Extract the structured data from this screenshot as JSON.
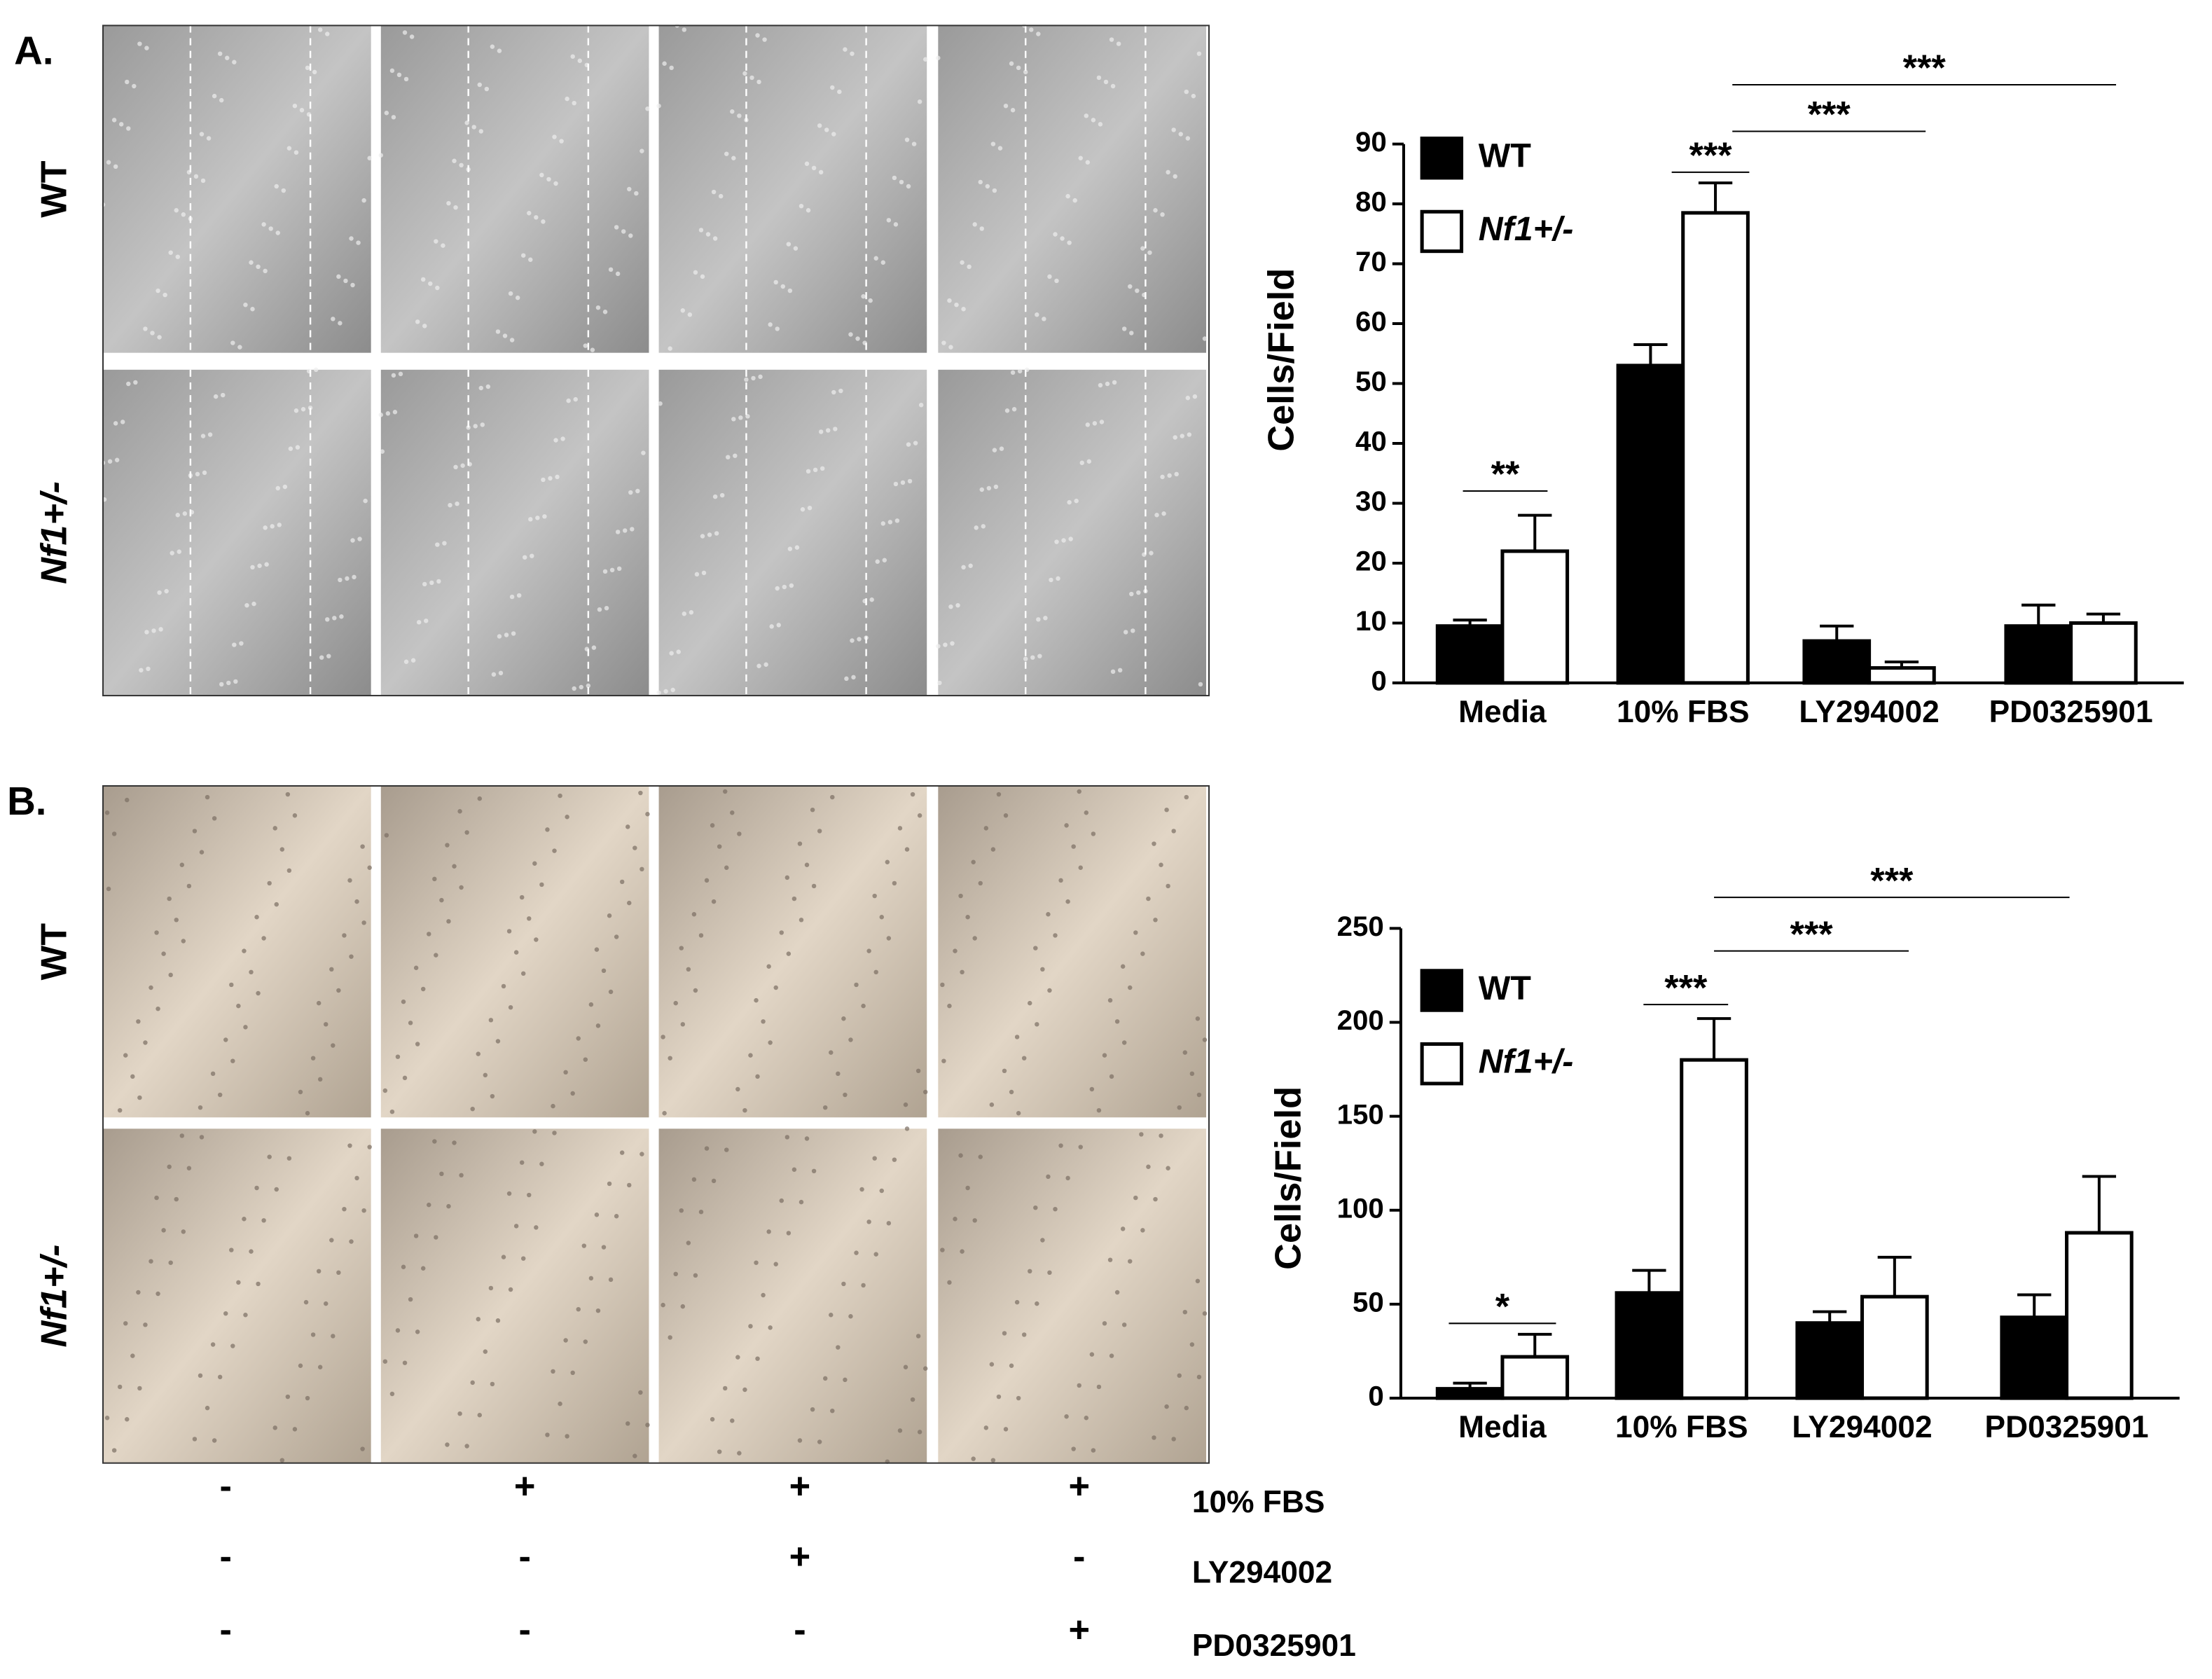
{
  "panels": [
    {
      "label": "A.",
      "row_labels": [
        "WT",
        "Nf1+/-"
      ]
    },
    {
      "label": "B.",
      "row_labels": [
        "WT",
        "Nf1+/-"
      ]
    }
  ],
  "chart_data": [
    {
      "type": "bar",
      "ylabel": "Cells/Field",
      "categories": [
        "Media",
        "10% FBS",
        "LY294002",
        "PD0325901"
      ],
      "ylim": [
        0,
        90
      ],
      "yticks": [
        0,
        10,
        20,
        30,
        40,
        50,
        60,
        70,
        80,
        90
      ],
      "series": [
        {
          "name": "WT",
          "color": "#000000",
          "values": [
            9.5,
            53,
            7,
            9.5
          ],
          "errors": [
            1,
            3.5,
            2.5,
            3.5
          ]
        },
        {
          "name": "Nf1+/-",
          "color": "#ffffff",
          "values": [
            22,
            78.5,
            2.5,
            10
          ],
          "errors": [
            6,
            5,
            1,
            1.5
          ]
        }
      ],
      "annotations": [
        "**",
        "***",
        "***",
        "***"
      ]
    },
    {
      "type": "bar",
      "ylabel": "Cells/Field",
      "categories": [
        "Media",
        "10% FBS",
        "LY294002",
        "PD0325901"
      ],
      "ylim": [
        0,
        250
      ],
      "yticks": [
        0,
        50,
        100,
        150,
        200,
        250
      ],
      "series": [
        {
          "name": "WT",
          "color": "#000000",
          "values": [
            5,
            56,
            40,
            43
          ],
          "errors": [
            3,
            12,
            6,
            12
          ]
        },
        {
          "name": "Nf1+/-",
          "color": "#ffffff",
          "values": [
            22,
            180,
            54,
            88
          ],
          "errors": [
            12,
            22,
            21,
            30
          ]
        }
      ],
      "annotations": [
        "*",
        "***",
        "***",
        "***"
      ]
    }
  ],
  "treatments": {
    "rows": [
      {
        "label": "10% FBS",
        "signs": [
          "-",
          "+",
          "+",
          "+"
        ]
      },
      {
        "label": "LY294002",
        "signs": [
          "-",
          "-",
          "+",
          "-"
        ]
      },
      {
        "label": "PD0325901",
        "signs": [
          "-",
          "-",
          "-",
          "+"
        ]
      }
    ]
  }
}
